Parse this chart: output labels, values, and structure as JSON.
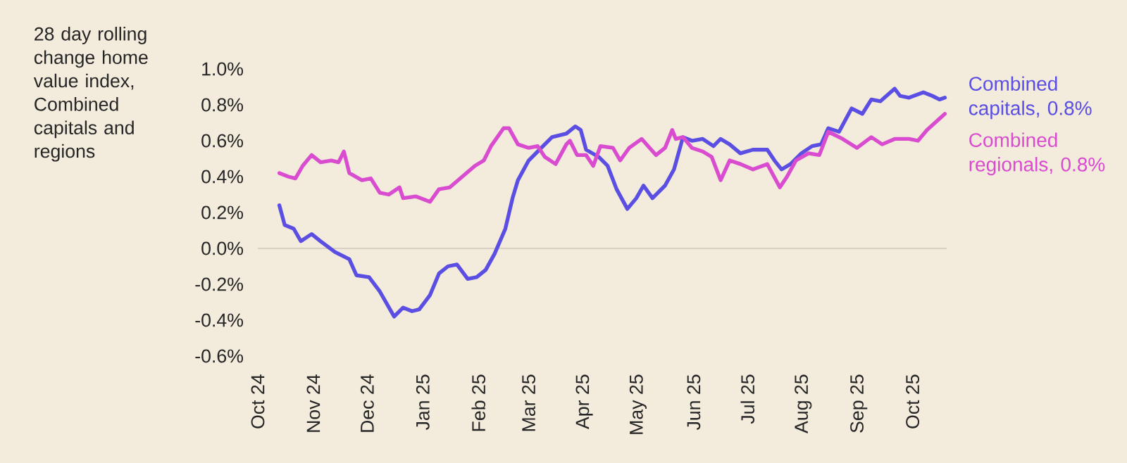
{
  "chart_data": {
    "type": "line",
    "ylabel": "28 day rolling change home value index, Combined capitals and regions",
    "xlim": [
      "2024-10-01",
      "2025-10-20"
    ],
    "xticks": [
      {
        "value": "2024-10-01",
        "label": "Oct 24"
      },
      {
        "value": "2024-11-01",
        "label": "Nov 24"
      },
      {
        "value": "2024-12-01",
        "label": "Dec 24"
      },
      {
        "value": "2025-01-01",
        "label": "Jan 25"
      },
      {
        "value": "2025-02-01",
        "label": "Feb 25"
      },
      {
        "value": "2025-03-01",
        "label": "Mar 25"
      },
      {
        "value": "2025-04-01",
        "label": "Apr 25"
      },
      {
        "value": "2025-05-01",
        "label": "May 25"
      },
      {
        "value": "2025-06-01",
        "label": "Jun 25"
      },
      {
        "value": "2025-07-01",
        "label": "Jul 25"
      },
      {
        "value": "2025-08-01",
        "label": "Aug 25"
      },
      {
        "value": "2025-09-01",
        "label": "Sep 25"
      },
      {
        "value": "2025-10-01",
        "label": "Oct 25"
      }
    ],
    "ylim": [
      -0.6,
      1.0
    ],
    "yticks": [
      {
        "value": -0.6,
        "label": "-0.6%"
      },
      {
        "value": -0.4,
        "label": "-0.4%"
      },
      {
        "value": -0.2,
        "label": "-0.2%"
      },
      {
        "value": 0.0,
        "label": "0.0%"
      },
      {
        "value": 0.2,
        "label": "0.2%"
      },
      {
        "value": 0.4,
        "label": "0.4%"
      },
      {
        "value": 0.6,
        "label": "0.6%"
      },
      {
        "value": 0.8,
        "label": "0.8%"
      },
      {
        "value": 1.0,
        "label": "1.0%"
      }
    ],
    "ref_lines": [
      {
        "axis": "y",
        "value": 0,
        "color": "#d8d0c2"
      }
    ],
    "legend": false,
    "series": [
      {
        "name": "Combined capitals, 0.8%",
        "color": "#5a4ee3",
        "x": [
          "2024-10-13",
          "2024-10-16",
          "2024-10-21",
          "2024-10-25",
          "2024-10-31",
          "2024-11-05",
          "2024-11-13",
          "2024-11-21",
          "2024-11-25",
          "2024-12-02",
          "2024-12-08",
          "2024-12-16",
          "2024-12-21",
          "2024-12-26",
          "2024-12-30",
          "2025-01-05",
          "2025-01-10",
          "2025-01-15",
          "2025-01-20",
          "2025-01-26",
          "2025-01-31",
          "2025-02-05",
          "2025-02-10",
          "2025-02-16",
          "2025-02-20",
          "2025-02-23",
          "2025-03-01",
          "2025-03-09",
          "2025-03-14",
          "2025-03-22",
          "2025-03-27",
          "2025-03-30",
          "2025-04-02",
          "2025-04-09",
          "2025-04-14",
          "2025-04-19",
          "2025-04-25",
          "2025-04-30",
          "2025-05-04",
          "2025-05-09",
          "2025-05-16",
          "2025-05-21",
          "2025-05-26",
          "2025-05-31",
          "2025-06-06",
          "2025-06-12",
          "2025-06-16",
          "2025-06-21",
          "2025-06-27",
          "2025-07-04",
          "2025-07-12",
          "2025-07-16",
          "2025-07-20",
          "2025-07-25",
          "2025-07-31",
          "2025-08-06",
          "2025-08-11",
          "2025-08-15",
          "2025-08-21",
          "2025-08-28",
          "2025-09-03",
          "2025-09-08",
          "2025-09-13",
          "2025-09-21",
          "2025-09-24",
          "2025-09-29",
          "2025-10-07",
          "2025-10-12",
          "2025-10-16",
          "2025-10-19"
        ],
        "values": [
          0.24,
          0.13,
          0.11,
          0.04,
          0.08,
          0.04,
          -0.02,
          -0.06,
          -0.15,
          -0.16,
          -0.24,
          -0.38,
          -0.33,
          -0.35,
          -0.34,
          -0.26,
          -0.14,
          -0.1,
          -0.09,
          -0.17,
          -0.16,
          -0.12,
          -0.03,
          0.11,
          0.28,
          0.38,
          0.49,
          0.57,
          0.62,
          0.64,
          0.68,
          0.66,
          0.55,
          0.51,
          0.46,
          0.33,
          0.22,
          0.28,
          0.35,
          0.28,
          0.35,
          0.44,
          0.62,
          0.6,
          0.61,
          0.57,
          0.61,
          0.58,
          0.53,
          0.55,
          0.55,
          0.49,
          0.44,
          0.47,
          0.53,
          0.57,
          0.58,
          0.67,
          0.65,
          0.78,
          0.75,
          0.83,
          0.82,
          0.89,
          0.85,
          0.84,
          0.87,
          0.85,
          0.83,
          0.84
        ]
      },
      {
        "name": "Combined regionals, 0.8%",
        "color": "#d94ccf",
        "x": [
          "2024-10-13",
          "2024-10-18",
          "2024-10-22",
          "2024-10-26",
          "2024-10-31",
          "2024-11-05",
          "2024-11-11",
          "2024-11-15",
          "2024-11-18",
          "2024-11-21",
          "2024-11-28",
          "2024-12-03",
          "2024-12-08",
          "2024-12-13",
          "2024-12-19",
          "2024-12-21",
          "2024-12-28",
          "2025-01-05",
          "2025-01-10",
          "2025-01-16",
          "2025-01-23",
          "2025-01-30",
          "2025-02-04",
          "2025-02-08",
          "2025-02-15",
          "2025-02-18",
          "2025-02-23",
          "2025-03-01",
          "2025-03-06",
          "2025-03-10",
          "2025-03-16",
          "2025-03-22",
          "2025-03-24",
          "2025-03-28",
          "2025-04-02",
          "2025-04-06",
          "2025-04-10",
          "2025-04-17",
          "2025-04-21",
          "2025-04-26",
          "2025-05-03",
          "2025-05-11",
          "2025-05-16",
          "2025-05-20",
          "2025-05-22",
          "2025-05-26",
          "2025-05-31",
          "2025-06-06",
          "2025-06-11",
          "2025-06-16",
          "2025-06-21",
          "2025-06-27",
          "2025-07-04",
          "2025-07-12",
          "2025-07-19",
          "2025-07-23",
          "2025-07-28",
          "2025-08-04",
          "2025-08-10",
          "2025-08-15",
          "2025-08-23",
          "2025-08-31",
          "2025-09-08",
          "2025-09-14",
          "2025-09-21",
          "2025-09-29",
          "2025-10-04",
          "2025-10-09",
          "2025-10-19"
        ],
        "values": [
          0.42,
          0.4,
          0.39,
          0.46,
          0.52,
          0.48,
          0.49,
          0.48,
          0.54,
          0.42,
          0.38,
          0.39,
          0.31,
          0.3,
          0.34,
          0.28,
          0.29,
          0.26,
          0.33,
          0.34,
          0.4,
          0.46,
          0.49,
          0.57,
          0.67,
          0.67,
          0.58,
          0.56,
          0.57,
          0.51,
          0.47,
          0.58,
          0.6,
          0.52,
          0.52,
          0.46,
          0.57,
          0.56,
          0.49,
          0.56,
          0.61,
          0.52,
          0.56,
          0.66,
          0.61,
          0.62,
          0.56,
          0.54,
          0.51,
          0.38,
          0.49,
          0.47,
          0.44,
          0.47,
          0.34,
          0.4,
          0.49,
          0.53,
          0.52,
          0.65,
          0.61,
          0.56,
          0.62,
          0.58,
          0.61,
          0.61,
          0.6,
          0.66,
          0.75
        ]
      }
    ]
  }
}
